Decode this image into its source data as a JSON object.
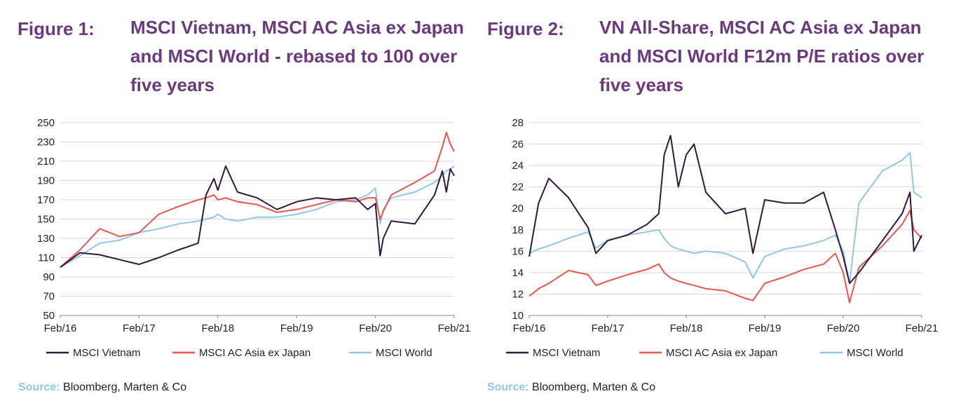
{
  "colors": {
    "title": "#6b3a7d",
    "vietnam": "#2e1a3d",
    "asia": "#e8574b",
    "world": "#8fc8e3",
    "source_label": "#8fc8e3"
  },
  "figure1": {
    "label": "Figure 1:",
    "title": "MSCI Vietnam, MSCI AC Asia ex Japan and MSCI World - rebased to 100 over five years",
    "source_label": "Source:",
    "source_text": " Bloomberg, Marten & Co"
  },
  "figure2": {
    "label": "Figure 2:",
    "title": "VN All-Share, MSCI AC Asia ex Japan and MSCI World F12m P/E ratios over five years",
    "source_label": "Source:",
    "source_text": " Bloomberg, Marten & Co"
  },
  "chart_data": [
    {
      "type": "line",
      "title": "MSCI Vietnam, MSCI AC Asia ex Japan and MSCI World - rebased to 100 over five years",
      "xlabel": "",
      "ylabel": "",
      "x_ticks": [
        "Feb/16",
        "Feb/17",
        "Feb/18",
        "Feb/19",
        "Feb/20",
        "Feb/21"
      ],
      "ylim": [
        50,
        250
      ],
      "y_ticks": [
        50,
        70,
        90,
        110,
        130,
        150,
        170,
        190,
        210,
        230,
        250
      ],
      "grid": true,
      "legend_position": "bottom",
      "x": [
        0,
        0.25,
        0.5,
        0.75,
        1.0,
        1.25,
        1.5,
        1.75,
        1.85,
        1.95,
        2.0,
        2.1,
        2.25,
        2.5,
        2.75,
        3.0,
        3.25,
        3.5,
        3.75,
        3.9,
        4.0,
        4.06,
        4.1,
        4.2,
        4.5,
        4.75,
        4.85,
        4.9,
        4.95,
        5.0
      ],
      "series": [
        {
          "name": "MSCI Vietnam",
          "color": "#2e1a3d",
          "values": [
            100,
            115,
            113,
            108,
            103,
            110,
            118,
            125,
            175,
            192,
            180,
            205,
            178,
            172,
            160,
            168,
            172,
            170,
            172,
            160,
            166,
            112,
            130,
            148,
            145,
            175,
            200,
            178,
            202,
            195
          ]
        },
        {
          "name": "MSCI AC Asia ex Japan",
          "color": "#e8574b",
          "values": [
            100,
            118,
            140,
            132,
            136,
            155,
            163,
            170,
            172,
            175,
            170,
            172,
            168,
            165,
            157,
            160,
            165,
            170,
            168,
            172,
            172,
            150,
            158,
            175,
            188,
            200,
            225,
            240,
            228,
            220
          ]
        },
        {
          "name": "MSCI World",
          "color": "#8fc8e3",
          "values": [
            100,
            112,
            125,
            128,
            136,
            140,
            145,
            148,
            150,
            152,
            155,
            150,
            148,
            152,
            152,
            155,
            160,
            168,
            170,
            175,
            182,
            145,
            160,
            172,
            178,
            188,
            195,
            200,
            202,
            205
          ]
        }
      ]
    },
    {
      "type": "line",
      "title": "VN All-Share, MSCI AC Asia ex Japan and MSCI World F12m P/E ratios over five years",
      "xlabel": "",
      "ylabel": "",
      "x_ticks": [
        "Feb/16",
        "Feb/17",
        "Feb/18",
        "Feb/19",
        "Feb/20",
        "Feb/21"
      ],
      "ylim": [
        10,
        28
      ],
      "y_ticks": [
        10,
        12,
        14,
        16,
        18,
        20,
        22,
        24,
        26,
        28
      ],
      "grid": true,
      "legend_position": "bottom",
      "x": [
        0,
        0.12,
        0.25,
        0.5,
        0.75,
        0.85,
        1.0,
        1.25,
        1.5,
        1.65,
        1.72,
        1.8,
        1.9,
        2.0,
        2.1,
        2.25,
        2.5,
        2.75,
        2.85,
        3.0,
        3.25,
        3.5,
        3.75,
        3.9,
        4.0,
        4.08,
        4.2,
        4.5,
        4.75,
        4.85,
        4.9,
        5.0
      ],
      "series": [
        {
          "name": "MSCI Vietnam",
          "color": "#2e1a3d",
          "values": [
            15.5,
            20.5,
            22.8,
            21.0,
            18.2,
            15.8,
            17.0,
            17.5,
            18.5,
            19.5,
            25.0,
            26.8,
            22.0,
            25.0,
            26.0,
            21.5,
            19.5,
            20.0,
            15.8,
            20.8,
            20.5,
            20.5,
            21.5,
            18.0,
            15.5,
            13.0,
            14.0,
            17.0,
            19.5,
            21.5,
            16.0,
            17.5
          ]
        },
        {
          "name": "MSCI AC Asia ex Japan",
          "color": "#e8574b",
          "values": [
            11.8,
            12.5,
            13.0,
            14.2,
            13.8,
            12.8,
            13.2,
            13.8,
            14.3,
            14.8,
            14.0,
            13.5,
            13.2,
            13.0,
            12.8,
            12.5,
            12.3,
            11.6,
            11.4,
            13.0,
            13.6,
            14.3,
            14.8,
            15.8,
            14.0,
            11.2,
            14.5,
            16.5,
            18.5,
            19.8,
            18.0,
            17.2
          ]
        },
        {
          "name": "MSCI World",
          "color": "#8fc8e3",
          "values": [
            15.8,
            16.2,
            16.5,
            17.2,
            17.8,
            16.3,
            17.0,
            17.5,
            17.8,
            18.0,
            17.2,
            16.5,
            16.2,
            16.0,
            15.8,
            16.0,
            15.8,
            15.0,
            13.5,
            15.5,
            16.2,
            16.5,
            17.0,
            17.5,
            16.0,
            13.0,
            20.5,
            23.5,
            24.5,
            25.2,
            21.5,
            21.0
          ]
        }
      ]
    }
  ]
}
